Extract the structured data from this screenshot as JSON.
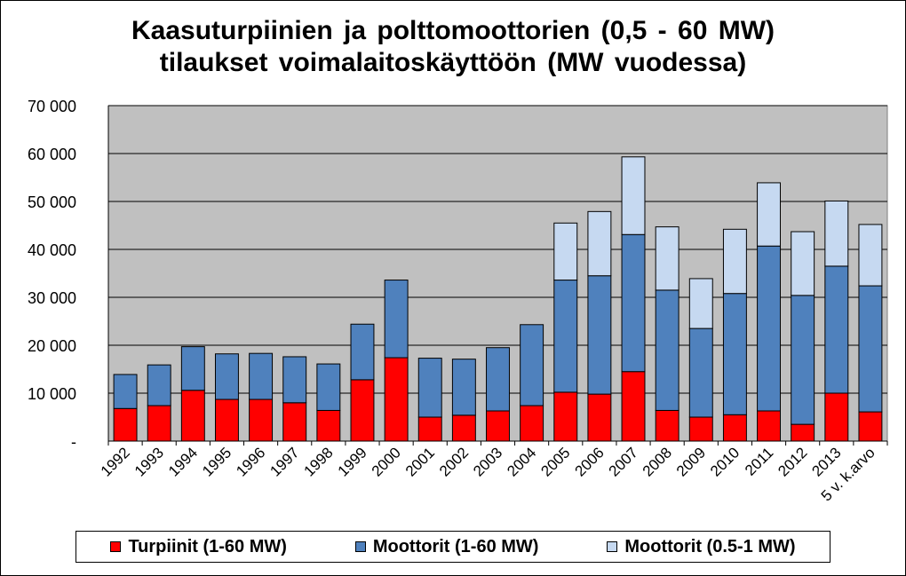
{
  "chart_data": {
    "type": "bar",
    "stacked": true,
    "title": [
      "Kaasuturpiinien ja polttomoottorien (0,5 - 60 MW)",
      "tilaukset voimalaitoskäyttöön (MW vuodessa)"
    ],
    "categories": [
      "1992",
      "1993",
      "1994",
      "1995",
      "1996",
      "1997",
      "1998",
      "1999",
      "2000",
      "2001",
      "2002",
      "2003",
      "2004",
      "2005",
      "2006",
      "2007",
      "2008",
      "2009",
      "2010",
      "2011",
      "2012",
      "2013",
      "5 v. k.arvo"
    ],
    "series": [
      {
        "name": "Turpiinit (1-60 MW)",
        "color": "#ff0000",
        "values": [
          6800,
          7400,
          10600,
          8700,
          8700,
          8000,
          6400,
          12800,
          17400,
          5000,
          5400,
          6300,
          7400,
          10200,
          9800,
          14500,
          6400,
          5000,
          5500,
          6300,
          3500,
          10000,
          6100
        ]
      },
      {
        "name": "Moottorit (1-60 MW)",
        "color": "#4f81bd",
        "values": [
          7100,
          8500,
          9100,
          9500,
          9600,
          9600,
          9700,
          11600,
          16200,
          12300,
          11700,
          13200,
          16900,
          23400,
          24700,
          28600,
          25100,
          18500,
          25300,
          34400,
          26900,
          26500,
          26300
        ]
      },
      {
        "name": "Moottorit (0.5-1 MW)",
        "color": "#c6d9f1",
        "values": [
          0,
          0,
          0,
          0,
          0,
          0,
          0,
          0,
          0,
          0,
          0,
          0,
          0,
          11900,
          13400,
          16200,
          13200,
          10400,
          13400,
          13200,
          13300,
          13600,
          12800
        ]
      }
    ],
    "y_ticks": [
      "-",
      "10 000",
      "20 000",
      "30 000",
      "40 000",
      "50 000",
      "60 000",
      "70 000"
    ],
    "ylim": [
      0,
      70000
    ],
    "y_step": 10000,
    "grid": true,
    "plot_background": "#c0c0c0",
    "legend_position": "bottom"
  }
}
